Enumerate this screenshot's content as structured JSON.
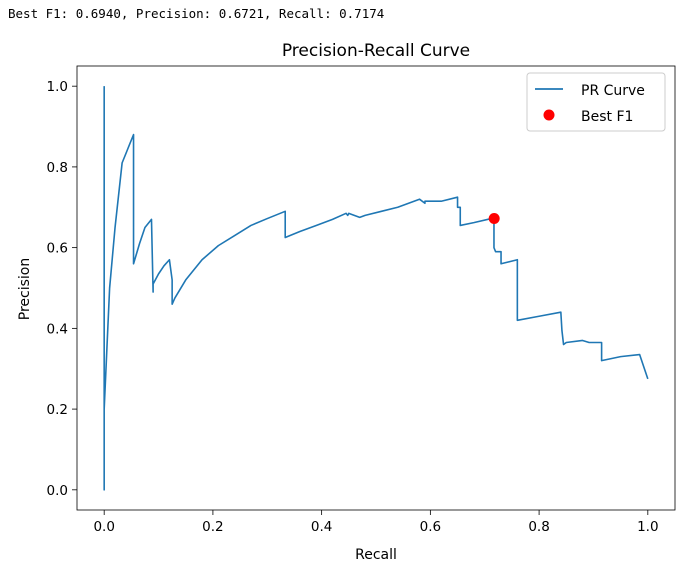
{
  "output": {
    "text": "Best F1: 0.6940, Precision: 0.6721, Recall: 0.7174"
  },
  "colors": {
    "curve": "#1f77b4",
    "best_point": "#ff0000"
  },
  "chart_data": {
    "type": "line",
    "title": "Precision-Recall Curve",
    "xlabel": "Recall",
    "ylabel": "Precision",
    "xlim": [
      -0.05,
      1.05
    ],
    "ylim": [
      -0.05,
      1.05
    ],
    "xticks": [
      0.0,
      0.2,
      0.4,
      0.6,
      0.8,
      1.0
    ],
    "xtick_labels": [
      "0.0",
      "0.2",
      "0.4",
      "0.6",
      "0.8",
      "1.0"
    ],
    "yticks": [
      0.0,
      0.2,
      0.4,
      0.6,
      0.8,
      1.0
    ],
    "ytick_labels": [
      "0.0",
      "0.2",
      "0.4",
      "0.6",
      "0.8",
      "1.0"
    ],
    "grid": false,
    "legend_position": "top-right",
    "series": [
      {
        "name": "PR Curve",
        "kind": "line",
        "x": [
          0.0,
          0.0,
          0.0,
          0.005,
          0.01,
          0.02,
          0.033,
          0.054,
          0.054,
          0.065,
          0.075,
          0.087,
          0.09,
          0.09,
          0.1,
          0.11,
          0.12,
          0.125,
          0.125,
          0.13,
          0.15,
          0.18,
          0.21,
          0.24,
          0.27,
          0.3,
          0.333,
          0.333,
          0.36,
          0.39,
          0.42,
          0.445,
          0.448,
          0.45,
          0.47,
          0.48,
          0.51,
          0.54,
          0.58,
          0.59,
          0.59,
          0.62,
          0.65,
          0.65,
          0.655,
          0.655,
          0.68,
          0.712,
          0.717,
          0.717,
          0.72,
          0.722,
          0.73,
          0.73,
          0.76,
          0.76,
          0.8,
          0.84,
          0.842,
          0.845,
          0.85,
          0.88,
          0.892,
          0.9,
          0.915,
          0.915,
          0.95,
          0.985,
          1.0
        ],
        "y": [
          1.0,
          0.0,
          0.2,
          0.35,
          0.5,
          0.65,
          0.81,
          0.88,
          0.56,
          0.61,
          0.65,
          0.67,
          0.49,
          0.51,
          0.535,
          0.555,
          0.57,
          0.52,
          0.46,
          0.475,
          0.52,
          0.57,
          0.605,
          0.63,
          0.655,
          0.672,
          0.69,
          0.625,
          0.64,
          0.655,
          0.67,
          0.685,
          0.68,
          0.685,
          0.675,
          0.68,
          0.69,
          0.7,
          0.72,
          0.71,
          0.715,
          0.715,
          0.725,
          0.7,
          0.7,
          0.655,
          0.662,
          0.672,
          0.672,
          0.6,
          0.59,
          0.59,
          0.59,
          0.56,
          0.57,
          0.42,
          0.43,
          0.44,
          0.395,
          0.36,
          0.365,
          0.37,
          0.365,
          0.365,
          0.365,
          0.32,
          0.33,
          0.335,
          0.275
        ]
      },
      {
        "name": "Best F1",
        "kind": "scatter",
        "x": [
          0.7174
        ],
        "y": [
          0.6721
        ]
      }
    ]
  }
}
